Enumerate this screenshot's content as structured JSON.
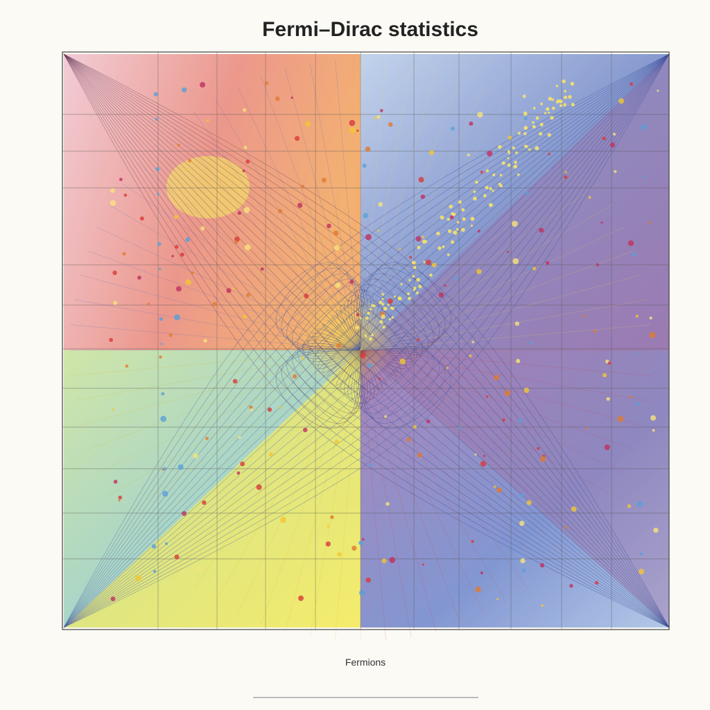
{
  "header": {
    "title": "Fermi–Dirac statistics"
  },
  "axes": {
    "x_label": "Fermions"
  }
}
